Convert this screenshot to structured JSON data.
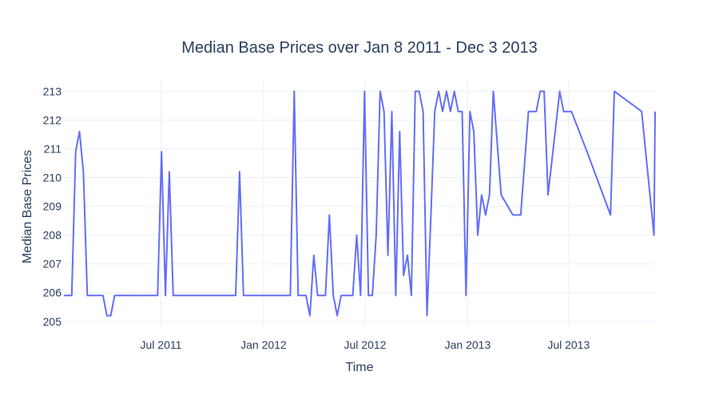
{
  "chart_data": {
    "type": "line",
    "title": "Median Base Prices over Jan 8 2011 - Dec 3 2013",
    "xlabel": "Time",
    "ylabel": "Median Base Prices",
    "x_axis_type": "date",
    "xlim": [
      "2011-01-08",
      "2013-12-03"
    ],
    "ylim": [
      204.8,
      213.4
    ],
    "y_ticks": [
      205,
      206,
      207,
      208,
      209,
      210,
      211,
      212,
      213
    ],
    "x_ticks": [
      {
        "date": "2011-07-01",
        "label": "Jul 2011"
      },
      {
        "date": "2012-01-01",
        "label": "Jan 2012"
      },
      {
        "date": "2012-07-01",
        "label": "Jul 2012"
      },
      {
        "date": "2013-01-01",
        "label": "Jan 2013"
      },
      {
        "date": "2013-07-01",
        "label": "Jul 2013"
      }
    ],
    "grid": true,
    "legend": "none",
    "line_color": "#636efa",
    "series": [
      {
        "x": [
          "2011-01-08",
          "2011-01-15",
          "2011-01-22",
          "2011-01-29",
          "2011-02-05",
          "2011-02-12",
          "2011-02-19",
          "2011-02-26",
          "2011-03-05",
          "2011-03-12",
          "2011-03-19",
          "2011-03-26",
          "2011-04-02",
          "2011-04-09",
          "2011-04-16",
          "2011-06-25",
          "2011-07-02",
          "2011-07-09",
          "2011-07-16",
          "2011-07-23",
          "2011-11-12",
          "2011-11-19",
          "2011-11-26",
          "2012-02-18",
          "2012-02-25",
          "2012-03-03",
          "2012-03-10",
          "2012-03-17",
          "2012-03-24",
          "2012-03-31",
          "2012-04-07",
          "2012-04-14",
          "2012-04-21",
          "2012-04-28",
          "2012-05-05",
          "2012-05-12",
          "2012-05-19",
          "2012-05-26",
          "2012-06-02",
          "2012-06-09",
          "2012-06-16",
          "2012-06-23",
          "2012-06-30",
          "2012-07-07",
          "2012-07-14",
          "2012-07-21",
          "2012-07-28",
          "2012-08-04",
          "2012-08-11",
          "2012-08-18",
          "2012-08-25",
          "2012-09-01",
          "2012-09-08",
          "2012-09-15",
          "2012-09-22",
          "2012-09-29",
          "2012-10-06",
          "2012-10-13",
          "2012-10-20",
          "2012-10-27",
          "2012-11-03",
          "2012-11-10",
          "2012-11-17",
          "2012-11-24",
          "2012-12-01",
          "2012-12-08",
          "2012-12-15",
          "2012-12-22",
          "2012-12-29",
          "2013-01-05",
          "2013-01-12",
          "2013-01-19",
          "2013-01-26",
          "2013-02-02",
          "2013-02-09",
          "2013-02-16",
          "2013-03-02",
          "2013-03-23",
          "2013-04-06",
          "2013-04-20",
          "2013-04-27",
          "2013-05-04",
          "2013-05-11",
          "2013-05-18",
          "2013-05-25",
          "2013-06-15",
          "2013-06-22",
          "2013-07-06",
          "2013-08-03",
          "2013-09-14",
          "2013-09-21",
          "2013-11-09",
          "2013-12-01",
          "2013-12-03"
        ],
        "y": [
          205.9,
          205.9,
          205.9,
          210.9,
          211.6,
          210.2,
          205.9,
          205.9,
          205.9,
          205.9,
          205.9,
          205.2,
          205.2,
          205.9,
          205.9,
          205.9,
          210.9,
          205.9,
          210.2,
          205.9,
          205.9,
          210.2,
          205.9,
          205.9,
          213.0,
          205.9,
          205.9,
          205.9,
          205.2,
          207.3,
          205.9,
          205.9,
          205.9,
          208.7,
          205.9,
          205.2,
          205.9,
          205.9,
          205.9,
          205.9,
          208.0,
          205.9,
          213.0,
          205.9,
          205.9,
          208.0,
          213.0,
          212.3,
          207.3,
          212.3,
          205.9,
          211.6,
          206.6,
          207.3,
          205.9,
          213.0,
          213.0,
          212.3,
          205.2,
          208.7,
          212.3,
          213.0,
          212.3,
          213.0,
          212.3,
          213.0,
          212.3,
          212.3,
          205.9,
          212.3,
          211.6,
          208.0,
          209.4,
          208.7,
          209.4,
          213.0,
          209.4,
          208.7,
          208.7,
          212.3,
          212.3,
          212.3,
          213.0,
          213.0,
          209.4,
          213.0,
          212.3,
          212.3,
          210.9,
          208.7,
          213.0,
          212.3,
          208.0,
          212.3
        ]
      }
    ]
  }
}
